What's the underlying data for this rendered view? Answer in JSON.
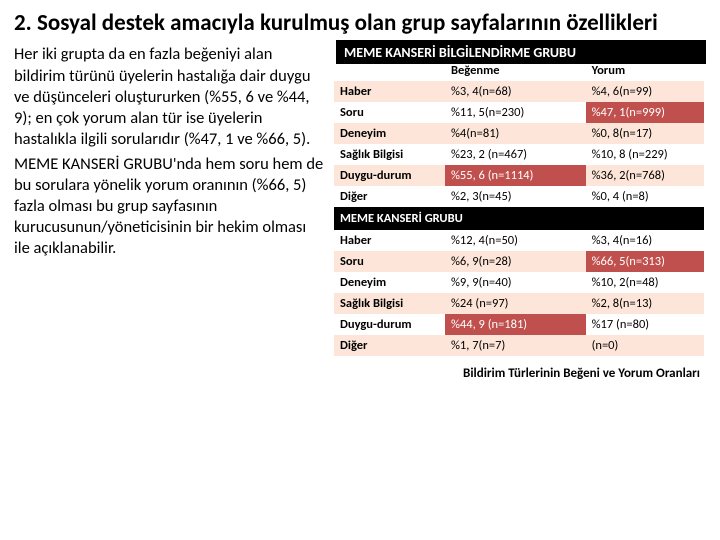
{
  "colors": {
    "banner_bg": "#000000",
    "banner_text": "#ffffff",
    "row_odd": "#ffffff",
    "row_even": "#fde6d9",
    "highlight_bg": "#c0504d",
    "highlight_text": "#ffffff",
    "group_row_bg": "#000000"
  },
  "title": "2. Sosyal destek amacıyla kurulmuş olan grup sayfalarının özellikleri",
  "table1_banner": "MEME KANSERİ BİLGİLENDİRME GRUBU",
  "body_p1": "Her iki grupta da en fazla beğeniyi alan bildirim türünü üyelerin hastalığa dair duygu ve düşünceleri oluştururken (%55, 6 ve %44, 9); en çok yorum alan tür ise üyelerin hastalıkla ilgili sorularıdır (%47, 1 ve %66, 5).",
  "body_p2": " MEME KANSERİ GRUBU'nda hem soru hem de bu sorulara yönelik yorum oranının (%66, 5)  fazla olması bu grup sayfasının kurucusunun/yöneticisinin bir hekim olması ile açıklanabilir.",
  "table": {
    "header": [
      "",
      "Beğenme",
      "Yorum"
    ],
    "group2_label": "MEME KANSERİ GRUBU",
    "rows1": [
      {
        "c0": "Haber",
        "c1": "%3, 4(n=68)",
        "c2": "%4, 6(n=99)"
      },
      {
        "c0": "Soru",
        "c1": "%11, 5(n=230)",
        "c2": "%47, 1(n=999)",
        "hl2": true
      },
      {
        "c0": "Deneyim",
        "c1": "%4(n=81)",
        "c2": "%0, 8(n=17)"
      },
      {
        "c0": "Sağlık Bilgisi",
        "c1": "%23, 2 (n=467)",
        "c2": "%10, 8 (n=229)"
      },
      {
        "c0": "Duygu-durum",
        "c1": "%55, 6 (n=1114)",
        "c2": "%36, 2(n=768)",
        "hl1": true
      },
      {
        "c0": "Diğer",
        "c1": "%2, 3(n=45)",
        "c2": "%0, 4 (n=8)"
      }
    ],
    "rows2": [
      {
        "c0": "Haber",
        "c1": "%12, 4(n=50)",
        "c2": "%3, 4(n=16)"
      },
      {
        "c0": "Soru",
        "c1": "%6, 9(n=28)",
        "c2": "%66, 5(n=313)",
        "hl2": true
      },
      {
        "c0": "Deneyim",
        "c1": "%9, 9(n=40)",
        "c2": "%10, 2(n=48)"
      },
      {
        "c0": "Sağlık Bilgisi",
        "c1": "%24 (n=97)",
        "c2": "%2, 8(n=13)"
      },
      {
        "c0": "Duygu-durum",
        "c1": "%44, 9 (n=181)",
        "c2": "%17 (n=80)",
        "hl1": true
      },
      {
        "c0": "Diğer",
        "c1": "%1, 7(n=7)",
        "c2": "(n=0)"
      }
    ]
  },
  "caption": "Bildirim Türlerinin Beğeni ve Yorum Oranları",
  "col_widths": [
    "30%",
    "38%",
    "32%"
  ]
}
